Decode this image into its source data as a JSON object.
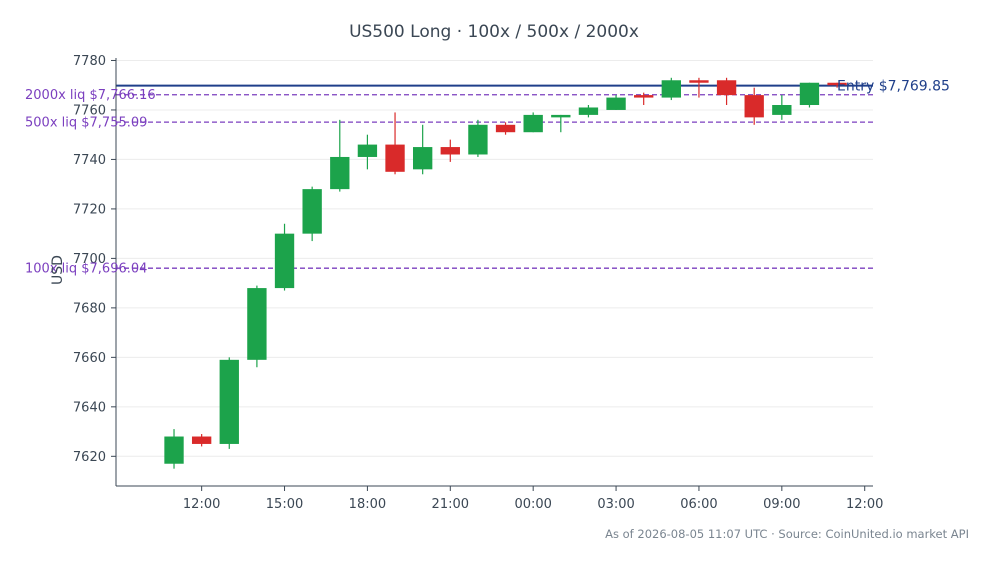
{
  "title": "US500 Long · 100x / 500x / 2000x",
  "footer": "As of 2026-08-05 11:07 UTC · Source: CoinUnited.io market API",
  "chart_data": {
    "type": "candlestick",
    "title": "US500 Long · 100x / 500x / 2000x",
    "ylabel": "USD",
    "xlabel": "",
    "ylim": [
      7608,
      7781
    ],
    "xlim_hours": [
      8.9,
      36.3
    ],
    "yticks": [
      7620,
      7640,
      7660,
      7680,
      7700,
      7720,
      7740,
      7760,
      7780
    ],
    "xticks": [
      {
        "label": "12:00",
        "hour": 12
      },
      {
        "label": "15:00",
        "hour": 15
      },
      {
        "label": "18:00",
        "hour": 18
      },
      {
        "label": "21:00",
        "hour": 21
      },
      {
        "label": "00:00",
        "hour": 24
      },
      {
        "label": "03:00",
        "hour": 27
      },
      {
        "label": "06:00",
        "hour": 30
      },
      {
        "label": "09:00",
        "hour": 33
      },
      {
        "label": "12:00",
        "hour": 36
      }
    ],
    "grid": true,
    "up_color": "#1ca34b",
    "down_color": "#d92a2a",
    "candles": [
      {
        "time": "11:00",
        "hour": 11,
        "open": 7617,
        "high": 7631,
        "low": 7615,
        "close": 7628
      },
      {
        "time": "12:00",
        "hour": 12,
        "open": 7628,
        "high": 7629,
        "low": 7624,
        "close": 7625
      },
      {
        "time": "13:00",
        "hour": 13,
        "open": 7625,
        "high": 7660,
        "low": 7623,
        "close": 7659
      },
      {
        "time": "14:00",
        "hour": 14,
        "open": 7659,
        "high": 7689,
        "low": 7656,
        "close": 7688
      },
      {
        "time": "15:00",
        "hour": 15,
        "open": 7688,
        "high": 7714,
        "low": 7687,
        "close": 7710
      },
      {
        "time": "16:00",
        "hour": 16,
        "open": 7710,
        "high": 7729,
        "low": 7707,
        "close": 7728
      },
      {
        "time": "17:00",
        "hour": 17,
        "open": 7728,
        "high": 7756,
        "low": 7727,
        "close": 7741
      },
      {
        "time": "18:00",
        "hour": 18,
        "open": 7741,
        "high": 7750,
        "low": 7736,
        "close": 7746
      },
      {
        "time": "19:00",
        "hour": 19,
        "open": 7746,
        "high": 7759,
        "low": 7734,
        "close": 7735
      },
      {
        "time": "20:00",
        "hour": 20,
        "open": 7736,
        "high": 7754,
        "low": 7734,
        "close": 7745
      },
      {
        "time": "21:00",
        "hour": 21,
        "open": 7745,
        "high": 7748,
        "low": 7739,
        "close": 7742
      },
      {
        "time": "22:00",
        "hour": 22,
        "open": 7742,
        "high": 7756,
        "low": 7741,
        "close": 7754
      },
      {
        "time": "23:00",
        "hour": 23,
        "open": 7754,
        "high": 7755,
        "low": 7750,
        "close": 7751
      },
      {
        "time": "00:00",
        "hour": 24,
        "open": 7751,
        "high": 7759,
        "low": 7751,
        "close": 7758
      },
      {
        "time": "01:00",
        "hour": 25,
        "open": 7757,
        "high": 7758,
        "low": 7751,
        "close": 7758
      },
      {
        "time": "02:00",
        "hour": 26,
        "open": 7758,
        "high": 7762,
        "low": 7757,
        "close": 7761
      },
      {
        "time": "03:00",
        "hour": 27,
        "open": 7760,
        "high": 7766,
        "low": 7760,
        "close": 7765
      },
      {
        "time": "04:00",
        "hour": 28,
        "open": 7766,
        "high": 7767,
        "low": 7762,
        "close": 7765
      },
      {
        "time": "05:00",
        "hour": 29,
        "open": 7765,
        "high": 7773,
        "low": 7764,
        "close": 7772
      },
      {
        "time": "06:00",
        "hour": 30,
        "open": 7772,
        "high": 7773,
        "low": 7765,
        "close": 7771
      },
      {
        "time": "07:00",
        "hour": 31,
        "open": 7772,
        "high": 7773,
        "low": 7762,
        "close": 7766
      },
      {
        "time": "08:00",
        "hour": 32,
        "open": 7766,
        "high": 7769,
        "low": 7754,
        "close": 7757
      },
      {
        "time": "09:00",
        "hour": 33,
        "open": 7758,
        "high": 7766,
        "low": 7756,
        "close": 7762
      },
      {
        "time": "10:00",
        "hour": 34,
        "open": 7762,
        "high": 7771,
        "low": 7761,
        "close": 7771
      },
      {
        "time": "11:00",
        "hour": 35,
        "open": 7771,
        "high": 7771,
        "low": 7769,
        "close": 7770
      }
    ],
    "lines": [
      {
        "label": "Entry $7,769.85",
        "value": 7769.85,
        "color": "#1f3f8a",
        "style": "solid",
        "label_side": "right"
      },
      {
        "label": "2000x liq $7,766.16",
        "value": 7766.16,
        "color": "#7b3fbf",
        "style": "dashed",
        "label_side": "left"
      },
      {
        "label": "500x liq $7,755.09",
        "value": 7755.09,
        "color": "#7b3fbf",
        "style": "dashed",
        "label_side": "left"
      },
      {
        "label": "100x liq $7,696.04",
        "value": 7696.04,
        "color": "#7b3fbf",
        "style": "dashed",
        "label_side": "left"
      }
    ]
  }
}
